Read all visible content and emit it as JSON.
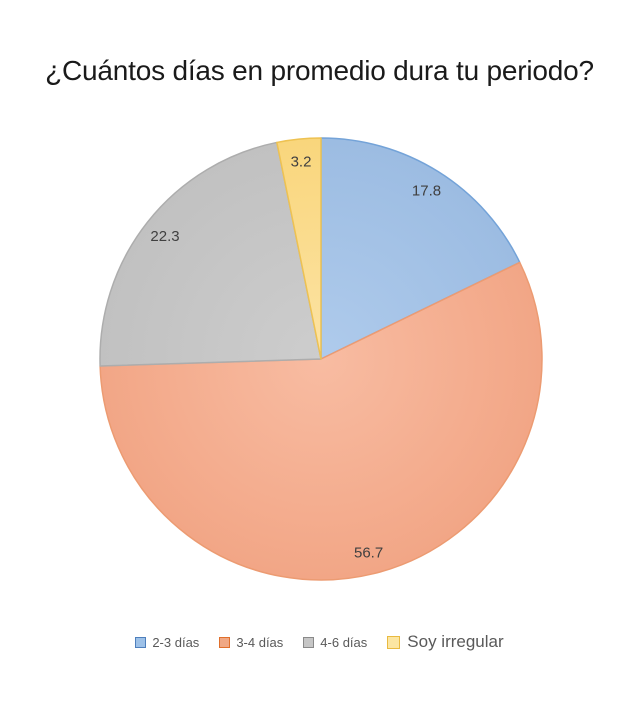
{
  "page": {
    "background": "#ffffff"
  },
  "chart_data": {
    "type": "pie",
    "title": "¿Cuántos días en promedio dura tu periodo?",
    "unit": "percent",
    "direction": "clockwise",
    "start_angle_deg": 0,
    "legend_position": "bottom",
    "grid": false,
    "categories": [
      "2-3 días",
      "3-4 días",
      "4-6 días",
      "Soy irregular"
    ],
    "values": [
      17.8,
      56.7,
      22.3,
      3.2
    ],
    "label_color": "#404040",
    "legend_text_color": "#595959",
    "slices": [
      {
        "label": "2-3 días",
        "value": 17.8,
        "display_value": "17.8",
        "fill_center": "#AFCBEC",
        "fill_edge": "#9CBCE2",
        "stroke": "#74A3D8",
        "legend_fill": "#9DC1E8",
        "legend_stroke": "#4E7FBC",
        "legend_large": false
      },
      {
        "label": "3-4 días",
        "value": 56.7,
        "display_value": "56.7",
        "fill_center": "#F8BCA2",
        "fill_edge": "#F2A686",
        "stroke": "#EC9B72",
        "legend_fill": "#F0A885",
        "legend_stroke": "#E06F2C",
        "legend_large": false
      },
      {
        "label": "4-6 días",
        "value": 22.3,
        "display_value": "22.3",
        "fill_center": "#CDCDCD",
        "fill_edge": "#C1C1C1",
        "stroke": "#ADADAD",
        "legend_fill": "#C6C6C6",
        "legend_stroke": "#898989",
        "legend_large": false
      },
      {
        "label": "Soy irregular",
        "value": 3.2,
        "display_value": "3.2",
        "fill_center": "#FCE3A4",
        "fill_edge": "#F9D67C",
        "stroke": "#EEC252",
        "legend_fill": "#FCE6A2",
        "legend_stroke": "#E9BA40",
        "legend_large": true
      }
    ]
  }
}
